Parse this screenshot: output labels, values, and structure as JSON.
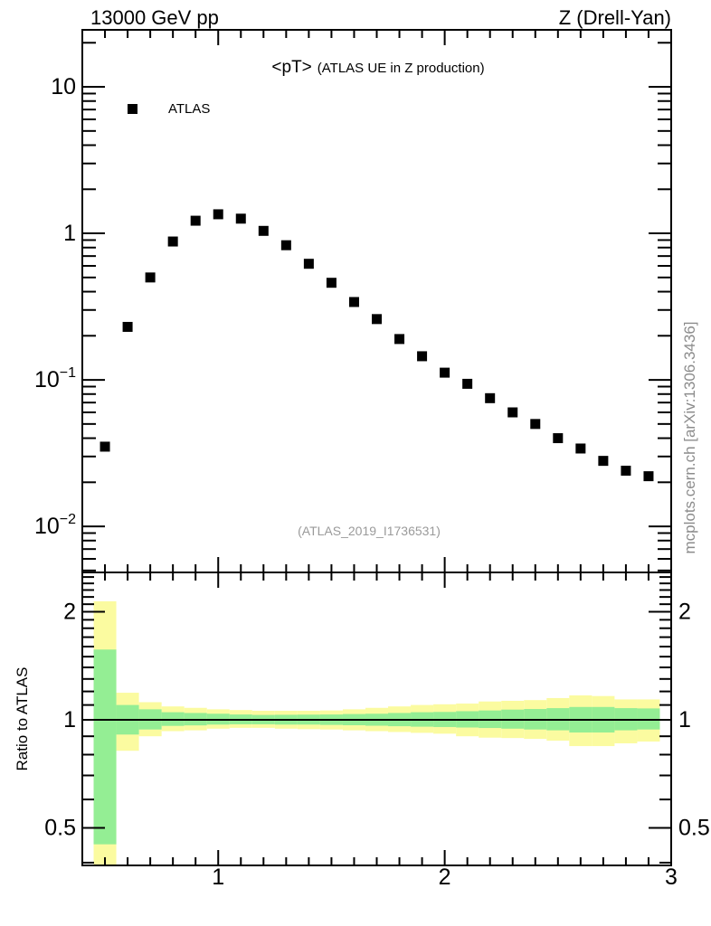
{
  "header": {
    "left": "13000 GeV pp",
    "right": "Z (Drell-Yan)"
  },
  "title": {
    "main": "<pT>",
    "sub": "(ATLAS UE in Z production)"
  },
  "legend": [
    {
      "label": "ATLAS",
      "marker": "filled-square",
      "color": "#000000"
    }
  ],
  "watermark": "(ATLAS_2019_I1736531)",
  "side_note": "mcplots.cern.ch [arXiv:1306.3436]",
  "colors": {
    "band_outer": "#FBFBA0",
    "band_inner": "#94EE94",
    "marker": "#000000",
    "frame": "#000000"
  },
  "chart_data": [
    {
      "type": "scatter",
      "panel": "main",
      "title": "<pT> (ATLAS UE in Z production)",
      "xscale": "linear",
      "yscale": "log",
      "xlim": [
        0.4,
        3.0
      ],
      "ylim": [
        0.00485,
        24.5
      ],
      "xticks": [
        1,
        2,
        3
      ],
      "yticks": [
        10,
        1,
        0.1,
        0.01
      ],
      "grid": false,
      "legend_position": "top-left",
      "series": [
        {
          "name": "ATLAS",
          "marker": "filled-square",
          "x": [
            0.5,
            0.6,
            0.7,
            0.8,
            0.9,
            1.0,
            1.1,
            1.2,
            1.3,
            1.4,
            1.5,
            1.6,
            1.7,
            1.8,
            1.9,
            2.0,
            2.1,
            2.2,
            2.3,
            2.4,
            2.5,
            2.6,
            2.7,
            2.8,
            2.9
          ],
          "y": [
            0.035,
            0.23,
            0.5,
            0.88,
            1.22,
            1.35,
            1.26,
            1.04,
            0.83,
            0.62,
            0.46,
            0.34,
            0.26,
            0.19,
            0.145,
            0.112,
            0.094,
            0.075,
            0.06,
            0.05,
            0.04,
            0.034,
            0.028,
            0.024,
            0.022
          ]
        }
      ]
    },
    {
      "type": "area",
      "panel": "ratio",
      "ylabel": "Ratio to ATLAS",
      "xscale": "linear",
      "yscale": "log",
      "xlim": [
        0.4,
        3.0
      ],
      "ylim": [
        0.393,
        2.575
      ],
      "yticks": [
        2,
        1,
        0.5
      ],
      "ref_line": 1,
      "bin_width": 0.1,
      "x": [
        0.5,
        0.6,
        0.7,
        0.8,
        0.9,
        1.0,
        1.1,
        1.2,
        1.3,
        1.4,
        1.5,
        1.6,
        1.7,
        1.8,
        1.9,
        2.0,
        2.1,
        2.2,
        2.3,
        2.4,
        2.5,
        2.6,
        2.7,
        2.8,
        2.9
      ],
      "green_lo": [
        0.45,
        0.91,
        0.94,
        0.962,
        0.965,
        0.97,
        0.972,
        0.972,
        0.97,
        0.97,
        0.968,
        0.966,
        0.963,
        0.96,
        0.957,
        0.955,
        0.952,
        0.949,
        0.945,
        0.94,
        0.935,
        0.922,
        0.922,
        0.935,
        0.94
      ],
      "green_hi": [
        1.57,
        1.1,
        1.07,
        1.05,
        1.045,
        1.04,
        1.035,
        1.032,
        1.033,
        1.034,
        1.035,
        1.038,
        1.04,
        1.045,
        1.05,
        1.052,
        1.057,
        1.062,
        1.068,
        1.072,
        1.078,
        1.086,
        1.086,
        1.078,
        1.076
      ],
      "yellow_lo": [
        0.393,
        0.82,
        0.9,
        0.93,
        0.935,
        0.945,
        0.95,
        0.95,
        0.945,
        0.942,
        0.94,
        0.935,
        0.93,
        0.925,
        0.92,
        0.915,
        0.9,
        0.892,
        0.89,
        0.885,
        0.875,
        0.845,
        0.845,
        0.86,
        0.87
      ],
      "yellow_hi": [
        2.14,
        1.19,
        1.12,
        1.09,
        1.08,
        1.07,
        1.065,
        1.06,
        1.06,
        1.06,
        1.062,
        1.07,
        1.08,
        1.09,
        1.1,
        1.105,
        1.11,
        1.125,
        1.13,
        1.135,
        1.15,
        1.17,
        1.165,
        1.14,
        1.14
      ]
    }
  ]
}
